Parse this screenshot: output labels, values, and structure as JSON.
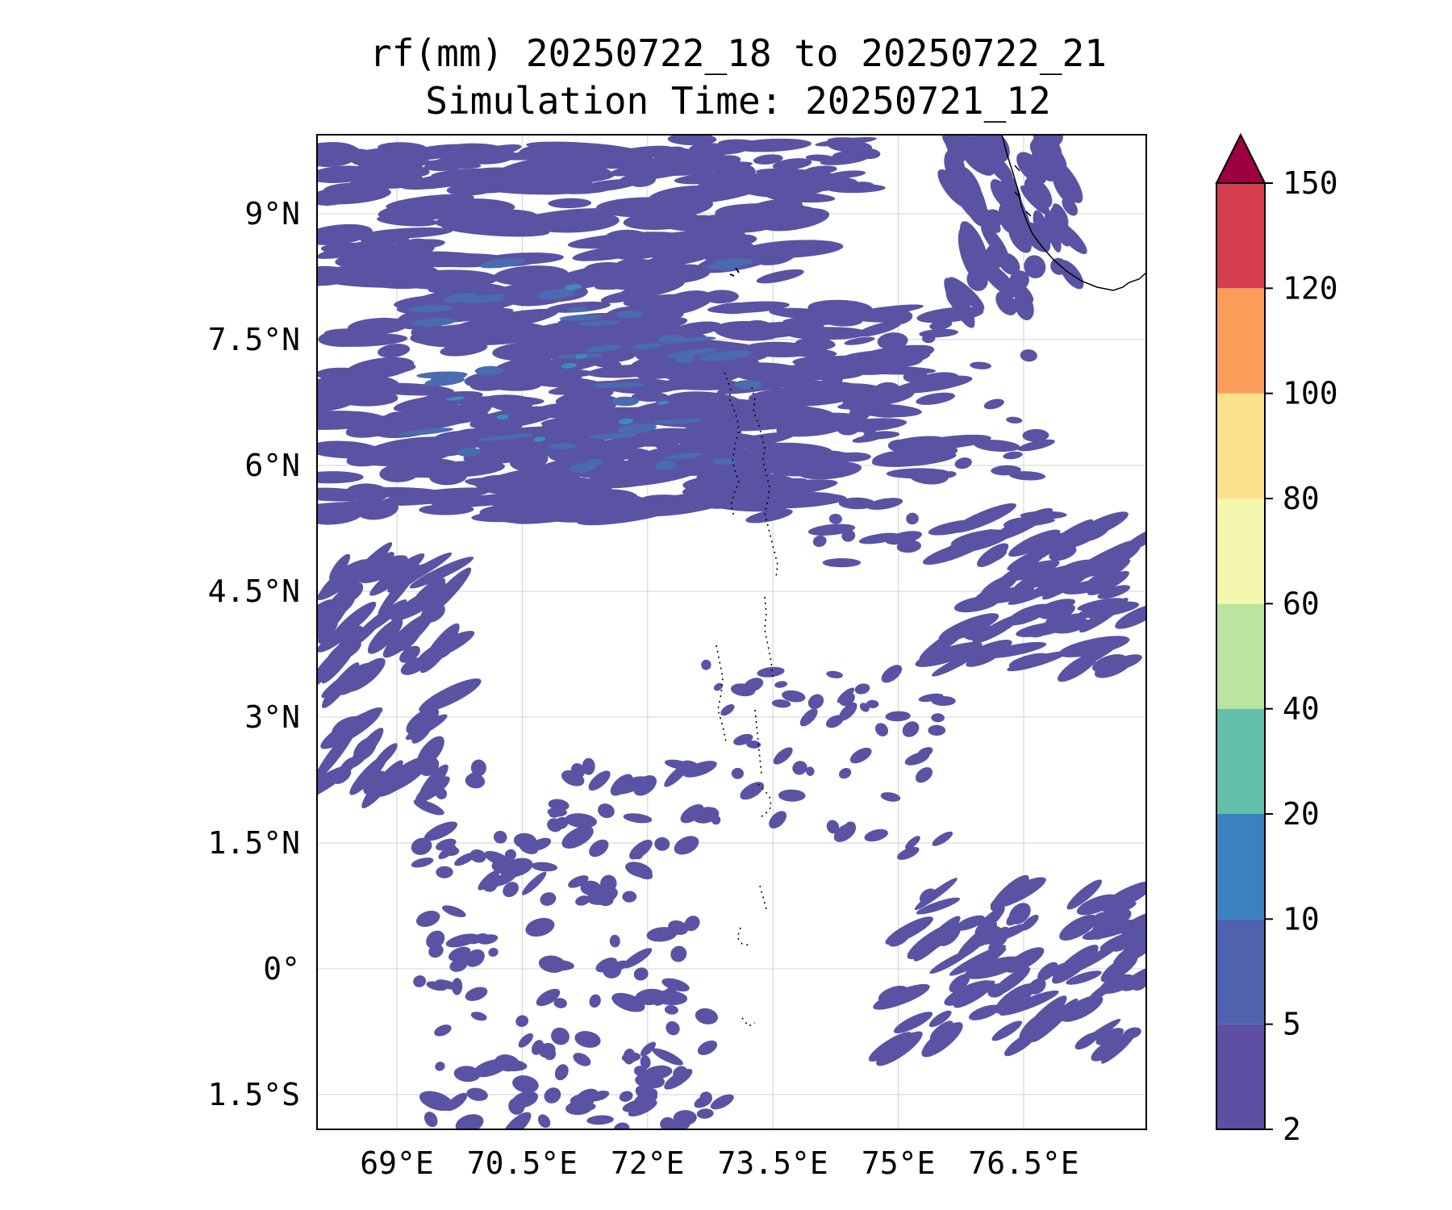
{
  "title_line1": "rf(mm) 20250722_18 to 20250722_21",
  "title_line2": "Simulation Time: 20250721_12",
  "map": {
    "lon_range": [
      68.0,
      78.0
    ],
    "lat_range": [
      -2.0,
      10.0
    ],
    "lon_ticks": [
      {
        "value": 69.0,
        "label": "69°E"
      },
      {
        "value": 70.5,
        "label": "70.5°E"
      },
      {
        "value": 72.0,
        "label": "72°E"
      },
      {
        "value": 73.5,
        "label": "73.5°E"
      },
      {
        "value": 75.0,
        "label": "75°E"
      },
      {
        "value": 76.5,
        "label": "76.5°E"
      }
    ],
    "lat_ticks": [
      {
        "value": 9.0,
        "label": "9°N"
      },
      {
        "value": 7.5,
        "label": "7.5°N"
      },
      {
        "value": 6.0,
        "label": "6°N"
      },
      {
        "value": 4.5,
        "label": "4.5°N"
      },
      {
        "value": 3.0,
        "label": "3°N"
      },
      {
        "value": 1.5,
        "label": "1.5°N"
      },
      {
        "value": 0.0,
        "label": "0°"
      },
      {
        "value": -1.5,
        "label": "1.5°S"
      }
    ],
    "gridlines": true,
    "rain_color": "#5a53a4",
    "rain_color_heavy": "#4a6bb0",
    "rain_color_peak": "#3a8fb8"
  },
  "colorbar": {
    "levels": [
      "2",
      "5",
      "10",
      "20",
      "40",
      "60",
      "80",
      "100",
      "120",
      "150"
    ],
    "colors": [
      "#5e4fa2",
      "#4f62ad",
      "#3a82bd",
      "#63bfab",
      "#bce4a0",
      "#f4f8ae",
      "#fde08b",
      "#f99d59",
      "#d53e4f"
    ],
    "extend_color": "#9e0142",
    "extend": "max"
  }
}
